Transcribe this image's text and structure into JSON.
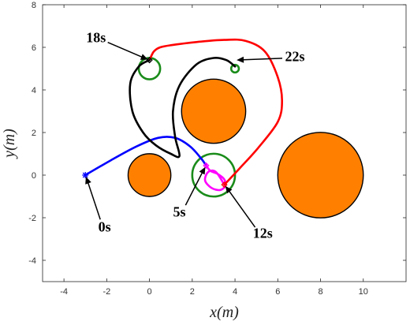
{
  "chart_data": {
    "type": "line",
    "xlabel": "x(m)",
    "ylabel": "y(m)",
    "xlim": [
      -5,
      12
    ],
    "ylim": [
      -5,
      8
    ],
    "xticks": [
      -4,
      -2,
      0,
      2,
      4,
      6,
      8,
      10
    ],
    "yticks": [
      -4,
      -2,
      0,
      2,
      4,
      6,
      8
    ],
    "grid": false,
    "obstacles": [
      {
        "cx": 0,
        "cy": 0,
        "r": 1.0,
        "color": "#FF8000"
      },
      {
        "cx": 3,
        "cy": 3,
        "r": 1.5,
        "color": "#FF8000"
      },
      {
        "cx": 8,
        "cy": 0,
        "r": 2.0,
        "color": "#FF8000"
      }
    ],
    "circles": [
      {
        "cx": 3,
        "cy": 0,
        "r": 1.0,
        "color": "#1A8C1A"
      },
      {
        "cx": 0,
        "cy": 5,
        "r": 0.5,
        "color": "#1A8C1A"
      },
      {
        "cx": 4,
        "cy": 5,
        "r": 0.18,
        "color": "#1A8C1A"
      }
    ],
    "series": [
      {
        "color": "#0000FF",
        "x": [
          -3,
          -1.8,
          -0.6,
          0.4,
          1.2,
          1.9,
          2.4,
          2.65
        ],
        "y": [
          0,
          0.7,
          1.35,
          1.75,
          1.75,
          1.35,
          0.8,
          0.45
        ]
      },
      {
        "color": "#FF00FF",
        "x": [
          2.65,
          2.85,
          3.2,
          3.5,
          3.55,
          3.3,
          2.9,
          2.6,
          2.75,
          3.1,
          3.5
        ],
        "y": [
          0.45,
          0.2,
          0.05,
          -0.2,
          -0.5,
          -0.7,
          -0.6,
          -0.25,
          0.15,
          0.15,
          -0.45
        ]
      },
      {
        "color": "#FF0000",
        "x": [
          3.5,
          4.2,
          5.1,
          6.0,
          6.2,
          6.0,
          5.4,
          4.5,
          3.5,
          2.2,
          1.0,
          0.5,
          0.2,
          0
        ],
        "y": [
          -0.45,
          0.3,
          1.3,
          2.5,
          3.5,
          4.6,
          5.8,
          6.3,
          6.35,
          6.25,
          6.1,
          6.0,
          5.8,
          5.4
        ]
      },
      {
        "color": "#000000",
        "x": [
          0,
          -0.5,
          -0.9,
          -0.8,
          -0.3,
          0.3,
          1.0,
          1.4,
          1.2,
          1.1,
          1.4,
          2.2,
          3.0,
          3.6,
          4.0
        ],
        "y": [
          5.4,
          5.1,
          4.3,
          3.0,
          2.0,
          1.4,
          1.0,
          0.9,
          1.8,
          3.0,
          4.2,
          5.2,
          5.5,
          5.4,
          5.1
        ]
      }
    ],
    "markers": [
      {
        "x": -3,
        "y": 0,
        "color": "#0000FF",
        "shape": "star"
      },
      {
        "x": 2.65,
        "y": 0.45,
        "color": "#FF00FF",
        "shape": "diamond"
      },
      {
        "x": 3.5,
        "y": -0.45,
        "color": "#FF0000",
        "shape": "diamond"
      },
      {
        "x": 0,
        "y": 5.4,
        "color": "#000000",
        "shape": "diamond"
      }
    ],
    "annotations": [
      {
        "text": "0s",
        "x": -3,
        "y": 0,
        "tx": -2.1,
        "ty": -2.5
      },
      {
        "text": "5s",
        "x": 2.65,
        "y": 0.45,
        "tx": 1.4,
        "ty": -1.8
      },
      {
        "text": "12s",
        "x": 3.5,
        "y": -0.45,
        "tx": 5.3,
        "ty": -2.8
      },
      {
        "text": "18s",
        "x": 0,
        "y": 5.4,
        "tx": -2.5,
        "ty": 6.4
      },
      {
        "text": "22s",
        "x": 4,
        "y": 5.4,
        "tx": 6.8,
        "ty": 5.5
      }
    ]
  }
}
